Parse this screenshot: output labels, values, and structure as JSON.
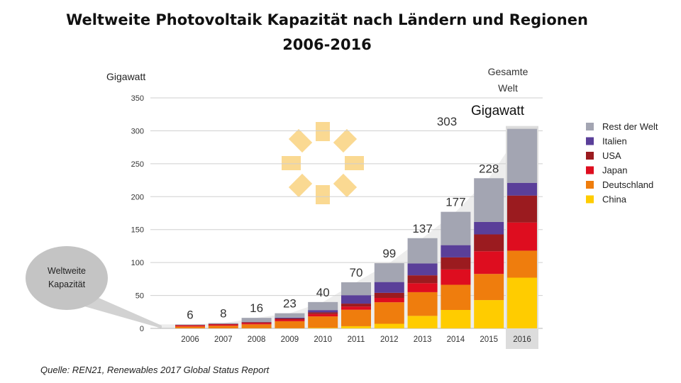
{
  "title_line1": "Weltweite Photovoltaik Kapazität nach Ländern und Regionen",
  "title_line2": "2006-2016",
  "total_label": [
    "Gesamte",
    "Welt"
  ],
  "total_unit": "Gigawatt",
  "bubble_text": [
    "Weltweite",
    "Kapazität"
  ],
  "source": "Quelle: REN21, Renewables 2017 Global Status Report",
  "chart_data": {
    "type": "bar",
    "stacked": true,
    "ylabel": "Gigawatt",
    "ylim": [
      0,
      350
    ],
    "yticks": [
      0,
      50,
      100,
      150,
      200,
      250,
      300,
      350
    ],
    "grid": true,
    "legend_position": "right",
    "categories": [
      "2006",
      "2007",
      "2008",
      "2009",
      "2010",
      "2011",
      "2012",
      "2013",
      "2014",
      "2015",
      "2016"
    ],
    "totals": [
      6,
      8,
      16,
      23,
      40,
      70,
      99,
      137,
      177,
      228,
      303
    ],
    "highlighted_category": "2016",
    "series": [
      {
        "name": "China",
        "color": "#ffcc00",
        "values": [
          0.1,
          0.1,
          0.2,
          0.3,
          0.8,
          3.3,
          7,
          19,
          28,
          43,
          77
        ]
      },
      {
        "name": "Deutschland",
        "color": "#ef7d0d",
        "values": [
          2.8,
          4.0,
          6.0,
          10.6,
          17.4,
          25.0,
          32.7,
          36.0,
          38.2,
          39.7,
          41.0
        ]
      },
      {
        "name": "Japan",
        "color": "#de0d1f",
        "values": [
          1.7,
          1.9,
          2.1,
          2.6,
          3.6,
          4.9,
          6.6,
          13.6,
          23.3,
          34.4,
          42.8
        ]
      },
      {
        "name": "USA",
        "color": "#9b1b1f",
        "values": [
          0.6,
          0.8,
          1.2,
          1.6,
          2.5,
          4.4,
          7.7,
          12.0,
          18.3,
          25.6,
          40.9
        ]
      },
      {
        "name": "Italien",
        "color": "#5a3f99",
        "values": [
          0.1,
          0.1,
          0.4,
          1.2,
          3.5,
          12.8,
          16.4,
          18.1,
          18.6,
          18.9,
          19.3
        ]
      },
      {
        "name": "Rest der Welt",
        "color": "#a3a5b2",
        "values": [
          0.7,
          1.1,
          6.1,
          6.7,
          12.2,
          19.6,
          28.6,
          38.3,
          50.6,
          66.4,
          82.0
        ]
      }
    ],
    "legend_order": [
      "Rest der Welt",
      "Italien",
      "USA",
      "Japan",
      "Deutschland",
      "China"
    ]
  }
}
